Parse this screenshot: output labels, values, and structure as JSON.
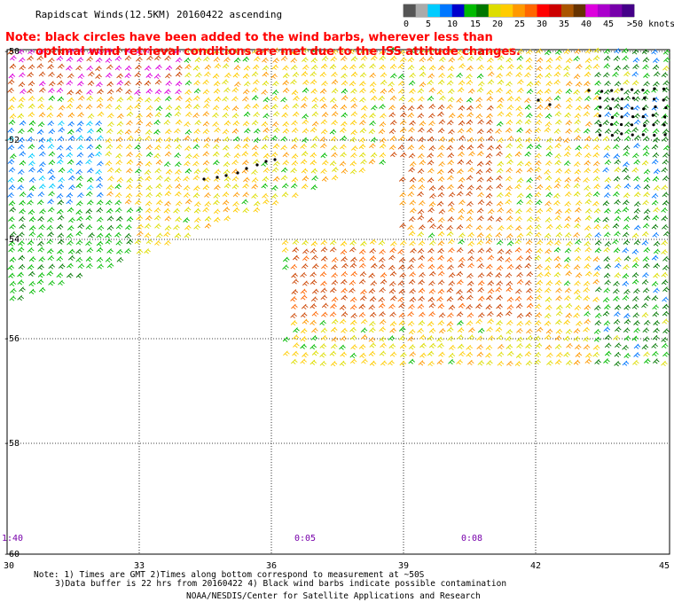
{
  "title": "Rapidscat Winds(12.5KM) 20160422 ascending",
  "warning": {
    "line1": "Note: black circles have been added to the wind barbs, wherever less than",
    "line2": "optimal wind retrieval conditions are met due to the ISS attitude changes."
  },
  "legend": {
    "ticks": [
      "0",
      "5",
      "10",
      "15",
      "20",
      "25",
      "30",
      "35",
      "40",
      "45",
      ">50 knots"
    ],
    "colors": [
      "#555555",
      "#aaaaaa",
      "#00ccff",
      "#0077ff",
      "#0000cc",
      "#00bb00",
      "#007700",
      "#dddd00",
      "#ffcc00",
      "#ff9900",
      "#ff6600",
      "#ff0000",
      "#cc0000",
      "#aa5500",
      "#663300",
      "#dd00dd",
      "#aa00cc",
      "#7700aa",
      "#440088"
    ]
  },
  "axes": {
    "lat_labels": [
      "-50",
      "-52",
      "-54",
      "-56",
      "-58",
      "-60"
    ],
    "lon_labels": [
      "30",
      "33",
      "36",
      "39",
      "42",
      "45"
    ]
  },
  "times": [
    "1:40",
    "0:05",
    "0:08"
  ],
  "notes": {
    "line1": "Note: 1) Times are GMT 2)Times along bottom correspond to measurement at ~50S",
    "line2": "3)Data buffer is 22 hrs from 20160422 4) Black wind barbs indicate possible contamination",
    "credit": "NOAA/NESDIS/Center for Satellite Applications and Research"
  }
}
